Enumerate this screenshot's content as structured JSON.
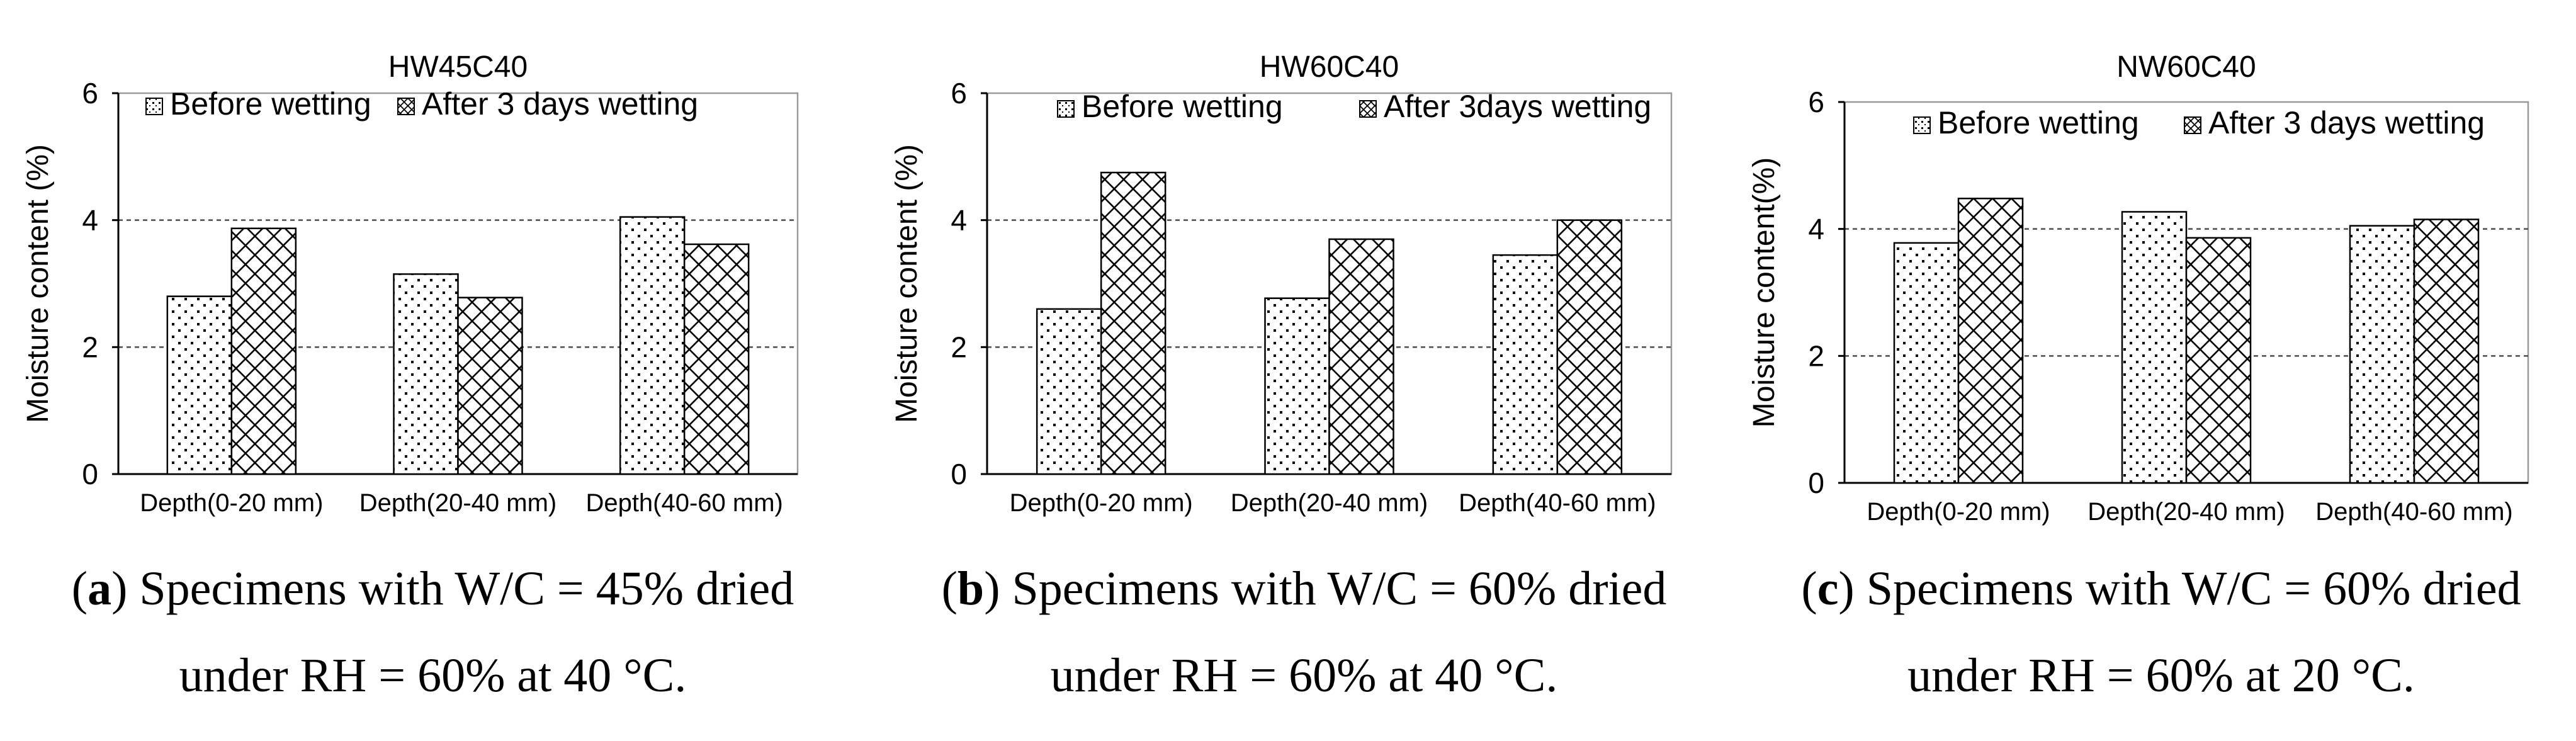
{
  "figure": {
    "colors": {
      "axis": "#000000",
      "grid": "#4d4d4d",
      "bar_fill": "#ffffff",
      "ink": "#000000"
    }
  },
  "chart_data": [
    {
      "type": "bar",
      "title": "HW45C40",
      "ylabel": "Moisture content (%)",
      "xlabel": "",
      "ylim": [
        0,
        6
      ],
      "yticks": [
        "0",
        "2",
        "4",
        "6"
      ],
      "grid": "dashed horizontal at 2 and 4",
      "legend_position": "top-inside",
      "categories": [
        "Depth(0-20 mm)",
        "Depth(20-40 mm)",
        "Depth(40-60 mm)"
      ],
      "series": [
        {
          "name": "Before wetting",
          "pattern": "dots",
          "values": [
            2.8,
            3.15,
            4.05
          ]
        },
        {
          "name": "After 3 days wetting",
          "pattern": "crosshatch",
          "values": [
            3.87,
            2.78,
            3.62
          ]
        }
      ],
      "caption": {
        "label": "a",
        "line1": "Specimens with W/C = 45% dried",
        "line2": "under RH = 60% at 40 °C."
      }
    },
    {
      "type": "bar",
      "title": "HW60C40",
      "ylabel": "Moisture content (%)",
      "xlabel": "",
      "ylim": [
        0,
        6
      ],
      "yticks": [
        "0",
        "2",
        "4",
        "6"
      ],
      "grid": "dashed horizontal at 2 and 4",
      "legend_position": "top-inside",
      "categories": [
        "Depth(0-20 mm)",
        "Depth(20-40 mm)",
        "Depth(40-60 mm)"
      ],
      "series": [
        {
          "name": "Before wetting",
          "pattern": "dots",
          "values": [
            2.6,
            2.77,
            3.45
          ]
        },
        {
          "name": "After 3days wetting",
          "pattern": "crosshatch",
          "values": [
            4.75,
            3.7,
            4.0
          ]
        }
      ],
      "caption": {
        "label": "b",
        "line1": "Specimens with W/C = 60% dried",
        "line2": "under RH = 60% at 40 °C."
      }
    },
    {
      "type": "bar",
      "title": "NW60C40",
      "ylabel": "Moisture content(%)",
      "xlabel": "",
      "ylim": [
        0,
        6
      ],
      "yticks": [
        "0",
        "2",
        "4",
        "6"
      ],
      "grid": "dashed horizontal at 2 and 4",
      "legend_position": "top-inside",
      "categories": [
        "Depth(0-20 mm)",
        "Depth(20-40 mm)",
        "Depth(40-60 mm)"
      ],
      "series": [
        {
          "name": "Before wetting",
          "pattern": "dots",
          "values": [
            3.78,
            4.27,
            4.05
          ]
        },
        {
          "name": "After 3 days wetting",
          "pattern": "crosshatch",
          "values": [
            4.48,
            3.86,
            4.15
          ]
        }
      ],
      "caption": {
        "label": "c",
        "line1": "Specimens with W/C = 60% dried",
        "line2": "under RH = 60% at 20 °C."
      }
    }
  ]
}
